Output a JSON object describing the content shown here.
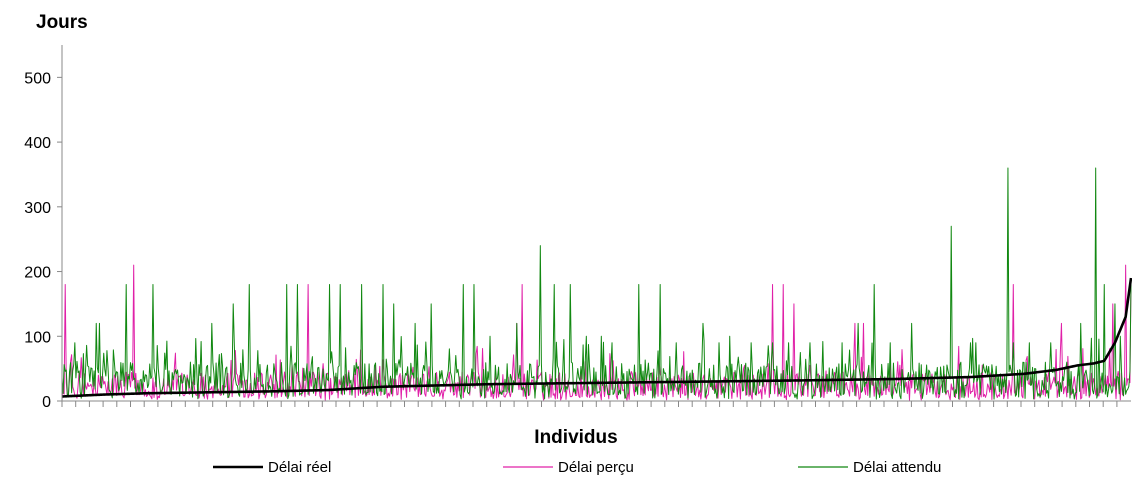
{
  "chart_data": {
    "type": "line",
    "ylabel": "Jours",
    "xlabel": "Individus",
    "ylim": [
      0,
      550
    ],
    "yticks": [
      0,
      100,
      200,
      300,
      400,
      500
    ],
    "grid": false,
    "legend_position": "bottom",
    "n_points": 1000,
    "series": [
      {
        "name": "Délai réel",
        "color": "#000000",
        "knots": [
          [
            0,
            7
          ],
          [
            40,
            10
          ],
          [
            80,
            12
          ],
          [
            200,
            15
          ],
          [
            250,
            17
          ],
          [
            300,
            22
          ],
          [
            400,
            26
          ],
          [
            500,
            28
          ],
          [
            600,
            30
          ],
          [
            700,
            32
          ],
          [
            780,
            34
          ],
          [
            850,
            37
          ],
          [
            900,
            42
          ],
          [
            930,
            48
          ],
          [
            950,
            55
          ],
          [
            965,
            58
          ],
          [
            975,
            62
          ],
          [
            985,
            90
          ],
          [
            995,
            130
          ],
          [
            1000,
            190
          ]
        ]
      },
      {
        "name": "Délai perçu",
        "color": "#e020a8",
        "baseline": [
          5,
          45
        ],
        "peaks": [
          [
            3,
            180
          ],
          [
            67,
            210
          ],
          [
            230,
            180
          ],
          [
            425,
            120
          ],
          [
            430,
            180
          ],
          [
            665,
            120
          ],
          [
            665,
            180
          ],
          [
            675,
            180
          ],
          [
            685,
            150
          ],
          [
            742,
            120
          ],
          [
            750,
            120
          ],
          [
            890,
            180
          ],
          [
            890,
            180
          ],
          [
            935,
            120
          ],
          [
            983,
            150
          ],
          [
            995,
            210
          ],
          [
            1000,
            190
          ]
        ]
      },
      {
        "name": "Délai attendu",
        "color": "#118811",
        "baseline": [
          10,
          60
        ],
        "peaks": [
          [
            12,
            90
          ],
          [
            32,
            120
          ],
          [
            35,
            120
          ],
          [
            60,
            180
          ],
          [
            85,
            180
          ],
          [
            120,
            60
          ],
          [
            140,
            120
          ],
          [
            160,
            150
          ],
          [
            175,
            180
          ],
          [
            210,
            180
          ],
          [
            220,
            180
          ],
          [
            250,
            180
          ],
          [
            260,
            180
          ],
          [
            280,
            180
          ],
          [
            300,
            180
          ],
          [
            310,
            150
          ],
          [
            330,
            120
          ],
          [
            345,
            150
          ],
          [
            375,
            180
          ],
          [
            385,
            180
          ],
          [
            400,
            100
          ],
          [
            425,
            120
          ],
          [
            447,
            240
          ],
          [
            460,
            180
          ],
          [
            475,
            180
          ],
          [
            490,
            100
          ],
          [
            505,
            100
          ],
          [
            515,
            90
          ],
          [
            540,
            180
          ],
          [
            560,
            180
          ],
          [
            575,
            90
          ],
          [
            600,
            120
          ],
          [
            615,
            90
          ],
          [
            625,
            100
          ],
          [
            645,
            90
          ],
          [
            665,
            90
          ],
          [
            680,
            90
          ],
          [
            700,
            90
          ],
          [
            730,
            90
          ],
          [
            745,
            120
          ],
          [
            760,
            180
          ],
          [
            775,
            90
          ],
          [
            795,
            120
          ],
          [
            832,
            270
          ],
          [
            850,
            90
          ],
          [
            855,
            90
          ],
          [
            885,
            360
          ],
          [
            890,
            90
          ],
          [
            905,
            90
          ],
          [
            925,
            90
          ],
          [
            940,
            60
          ],
          [
            953,
            120
          ],
          [
            967,
            360
          ],
          [
            975,
            180
          ],
          [
            985,
            150
          ],
          [
            990,
            100
          ],
          [
            1000,
            180
          ]
        ]
      }
    ]
  }
}
